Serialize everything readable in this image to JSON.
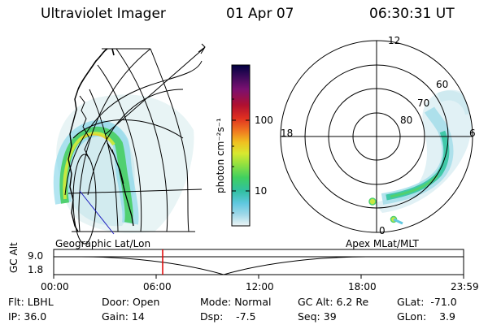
{
  "header": {
    "title": "Ultraviolet Imager",
    "date": "01 Apr 07",
    "time": "06:30:31 UT"
  },
  "colorbar": {
    "unit_label": "photon cm⁻²s⁻¹",
    "tick_100": "100",
    "tick_10": "10",
    "scale": "log",
    "colors": [
      "#000040",
      "#3a0a5a",
      "#7a1070",
      "#a81030",
      "#e03020",
      "#f07820",
      "#f0c020",
      "#d8e830",
      "#90e040",
      "#40d060",
      "#30c0a0",
      "#60c8e0",
      "#a0d8e8",
      "#e0f0f0"
    ]
  },
  "left_map": {
    "label": "Geographic Lat/Lon"
  },
  "right_map": {
    "label": "Apex  MLat/MLT",
    "mlt_12": "12",
    "mlt_18": "18",
    "mlt_6": "6",
    "mlt_0": "0",
    "lat_60": "60",
    "lat_70": "70",
    "lat_80": "80"
  },
  "timeline": {
    "axis_label": "GC Alt",
    "y_top": "9.0",
    "y_bottom": "1.8",
    "ticks": [
      "00:00",
      "06:00",
      "12:00",
      "18:00",
      "23:59"
    ],
    "current_marker_color": "#e00000"
  },
  "info": {
    "flt": "Flt: LBHL",
    "ip": "IP: 36.0",
    "door": "Door: Open",
    "gain": "Gain: 14",
    "mode": "Mode: Normal",
    "dsp": "Dsp:    -7.5",
    "gc_alt": "GC Alt: 6.2 Re",
    "seq": "Seq: 39",
    "glat": "GLat:  -71.0",
    "glon": "GLon:    3.9"
  }
}
